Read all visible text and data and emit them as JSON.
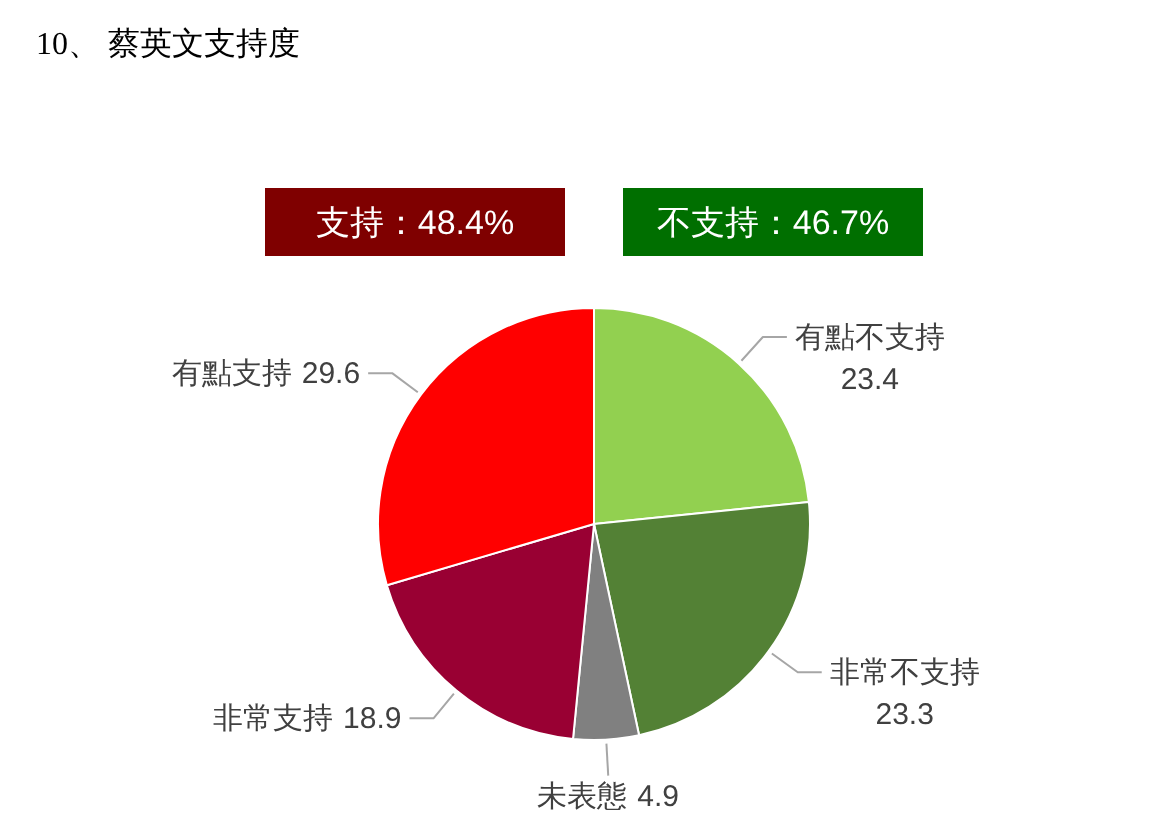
{
  "chart_data": {
    "type": "pie",
    "title": "10、 蔡英文支持度",
    "categories": [
      "有點不支持",
      "非常不支持",
      "未表態",
      "非常支持",
      "有點支持"
    ],
    "values": [
      23.4,
      23.3,
      4.9,
      18.9,
      29.6
    ],
    "colors": [
      "#92d050",
      "#538135",
      "#808080",
      "#990033",
      "#ff0000"
    ],
    "data_labels": true,
    "annotations": [
      "支持：48.4%",
      "不支持：46.7%"
    ]
  }
}
